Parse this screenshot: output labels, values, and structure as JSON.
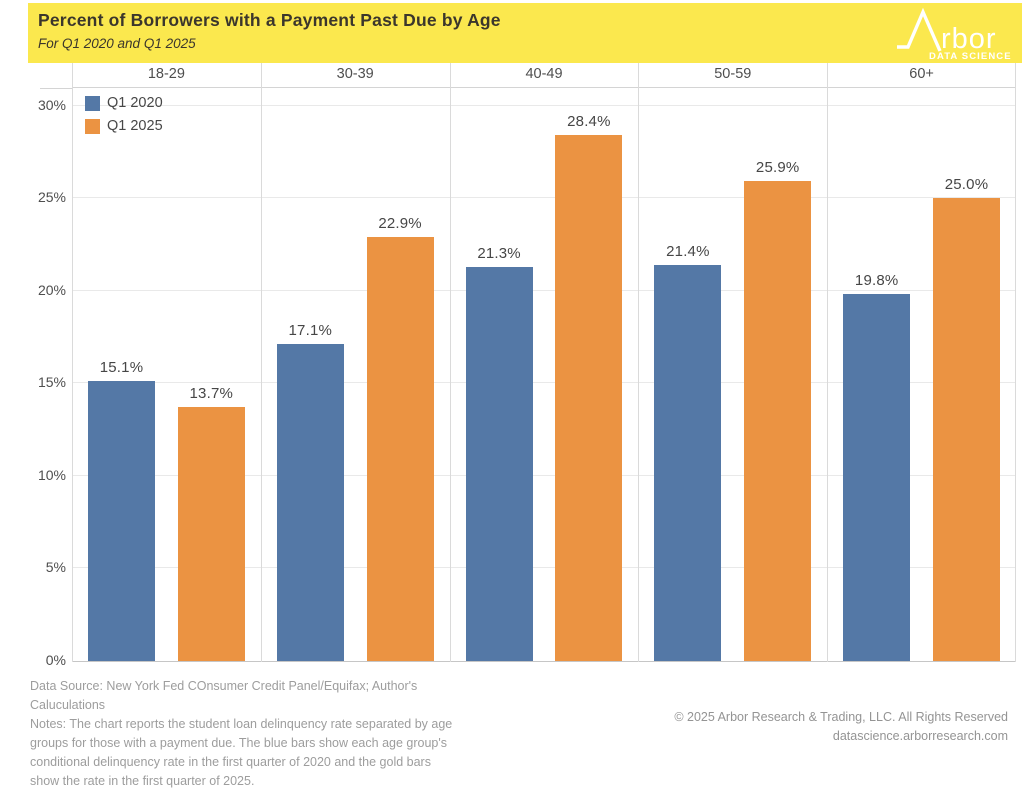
{
  "banner": {
    "title": "Percent of Borrowers with a Payment Past Due by Age",
    "subtitle": "For Q1 2020 and Q1 2025",
    "logo": {
      "wordmark": "rbor",
      "tagline": "DATA SCIENCE"
    }
  },
  "chart_data": {
    "type": "bar",
    "title": "Percent of Borrowers with a Payment Past Due by Age",
    "subtitle": "For Q1 2020 and Q1 2025",
    "categories": [
      "18-29",
      "30-39",
      "40-49",
      "50-59",
      "60+"
    ],
    "series": [
      {
        "name": "Q1 2020",
        "color": "#5478a6",
        "values": [
          15.1,
          17.1,
          21.3,
          21.4,
          19.8
        ]
      },
      {
        "name": "Q1 2025",
        "color": "#eb9342",
        "values": [
          13.7,
          22.9,
          28.4,
          25.9,
          25.0
        ]
      }
    ],
    "value_suffix": "%",
    "value_decimals": 1,
    "xlabel": "",
    "ylabel": "",
    "y_ticks": [
      "0%",
      "5%",
      "10%",
      "15%",
      "20%",
      "25%",
      "30%"
    ],
    "y_tick_values": [
      0,
      5,
      10,
      15,
      20,
      25,
      30
    ],
    "ylim": [
      0,
      31
    ],
    "grid": true,
    "legend_position": "top-left"
  },
  "footer": {
    "left_lines": [
      "Data Source: New York Fed COnsumer Credit Panel/Equifax; Author's",
      "Caluculations",
      "Notes: The chart reports the student loan delinquency rate separated by age",
      "groups for those with a payment due. The blue bars show each age group's",
      "conditional delinquency rate in the first quarter of 2020 and the gold bars",
      "show the rate in the first quarter of 2025."
    ],
    "right_lines": [
      "© 2025 Arbor Research & Trading, LLC. All Rights Reserved",
      "datascience.arborresearch.com"
    ]
  }
}
